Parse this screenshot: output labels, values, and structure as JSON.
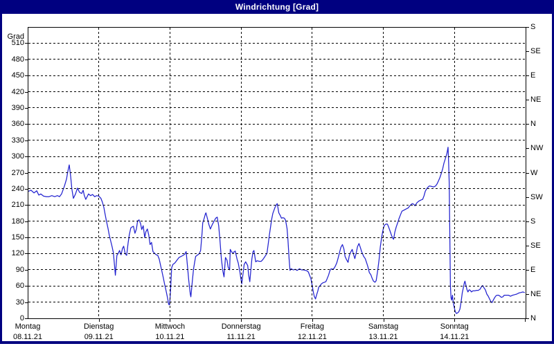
{
  "title_bar": {
    "title": "Windrichtung [Grad]",
    "bg": "#000080",
    "fg": "#ffffff"
  },
  "chart": {
    "y_axis_label": "Grad",
    "line_color": "#2121cf",
    "frame_color": "#000000",
    "background": "#ffffff",
    "left_ticks": [
      0,
      30,
      60,
      90,
      120,
      150,
      180,
      210,
      240,
      270,
      300,
      330,
      360,
      390,
      420,
      450,
      480,
      510
    ],
    "right_ticks": [
      {
        "value": 0,
        "label": "N"
      },
      {
        "value": 45,
        "label": "NE"
      },
      {
        "value": 90,
        "label": "E"
      },
      {
        "value": 135,
        "label": "SE"
      },
      {
        "value": 180,
        "label": "S"
      },
      {
        "value": 225,
        "label": "SW"
      },
      {
        "value": 270,
        "label": "W"
      },
      {
        "value": 315,
        "label": "NW"
      },
      {
        "value": 360,
        "label": "N"
      },
      {
        "value": 405,
        "label": "NE"
      },
      {
        "value": 450,
        "label": "E"
      },
      {
        "value": 495,
        "label": "SE"
      },
      {
        "value": 540,
        "label": "S"
      }
    ],
    "x_days": [
      {
        "name": "Montag",
        "date": "08.11.21"
      },
      {
        "name": "Dienstag",
        "date": "09.11.21"
      },
      {
        "name": "Mittwoch",
        "date": "10.11.21"
      },
      {
        "name": "Donnerstag",
        "date": "11.11.21"
      },
      {
        "name": "Freitag",
        "date": "12.11.21"
      },
      {
        "name": "Samstag",
        "date": "13.11.21"
      },
      {
        "name": "Sonntag",
        "date": "14.11.21"
      }
    ]
  },
  "chart_data": {
    "type": "line",
    "title": "Windrichtung [Grad]",
    "ylabel": "Grad",
    "ylim": [
      0,
      540
    ],
    "x_unit": "hours since Monday 08.11.21 00:00",
    "x_hours_max": 168,
    "grid": "dashed, 30-degree horizontal steps, vertical line per day",
    "right_axis": "compass directions every 45 degrees",
    "points": [
      [
        0,
        236
      ],
      [
        0.9,
        238
      ],
      [
        1.9,
        233
      ],
      [
        2.8,
        237
      ],
      [
        3.5,
        229
      ],
      [
        4.2,
        231
      ],
      [
        5.1,
        227
      ],
      [
        6.1,
        226
      ],
      [
        7,
        226
      ],
      [
        7.9,
        228
      ],
      [
        8.9,
        226
      ],
      [
        9.8,
        228
      ],
      [
        10.5,
        226
      ],
      [
        11.2,
        231
      ],
      [
        12.2,
        246
      ],
      [
        12.9,
        259
      ],
      [
        13.3,
        272
      ],
      [
        13.8,
        285
      ],
      [
        14.3,
        263
      ],
      [
        14.7,
        240
      ],
      [
        15.2,
        223
      ],
      [
        15.9,
        231
      ],
      [
        16.6,
        242
      ],
      [
        17.3,
        234
      ],
      [
        18,
        232
      ],
      [
        18.5,
        238
      ],
      [
        18.9,
        228
      ],
      [
        19.4,
        221
      ],
      [
        20.3,
        231
      ],
      [
        21,
        228
      ],
      [
        21.7,
        230
      ],
      [
        22.4,
        226
      ],
      [
        23.1,
        228
      ],
      [
        23.8,
        227
      ],
      [
        24.5,
        223
      ],
      [
        25,
        216
      ],
      [
        25.5,
        206
      ],
      [
        25.9,
        194
      ],
      [
        26.4,
        180
      ],
      [
        26.9,
        167
      ],
      [
        27.3,
        155
      ],
      [
        27.8,
        144
      ],
      [
        28.3,
        133
      ],
      [
        28.7,
        122
      ],
      [
        29,
        105
      ],
      [
        29.4,
        80
      ],
      [
        29.9,
        117
      ],
      [
        30.4,
        121
      ],
      [
        30.8,
        126
      ],
      [
        31.3,
        118
      ],
      [
        31.8,
        130
      ],
      [
        32.2,
        134
      ],
      [
        32.7,
        120
      ],
      [
        33.2,
        117
      ],
      [
        33.7,
        140
      ],
      [
        34.1,
        155
      ],
      [
        34.6,
        168
      ],
      [
        35.1,
        170
      ],
      [
        35.5,
        171
      ],
      [
        36,
        158
      ],
      [
        36.5,
        166
      ],
      [
        36.9,
        181
      ],
      [
        37.4,
        183
      ],
      [
        37.9,
        176
      ],
      [
        38.3,
        165
      ],
      [
        38.8,
        172
      ],
      [
        39.3,
        150
      ],
      [
        39.7,
        161
      ],
      [
        40.2,
        166
      ],
      [
        40.7,
        154
      ],
      [
        41.1,
        137
      ],
      [
        41.6,
        141
      ],
      [
        42.1,
        124
      ],
      [
        42.8,
        120
      ],
      [
        43.2,
        118
      ],
      [
        43.7,
        117
      ],
      [
        44.2,
        110
      ],
      [
        44.6,
        100
      ],
      [
        45.1,
        88
      ],
      [
        45.6,
        75
      ],
      [
        46,
        64
      ],
      [
        46.5,
        52
      ],
      [
        47,
        38
      ],
      [
        47.4,
        26
      ],
      [
        47.7,
        25
      ],
      [
        47.9,
        40
      ],
      [
        48.1,
        60
      ],
      [
        48.4,
        94
      ],
      [
        48.8,
        100
      ],
      [
        49.5,
        103
      ],
      [
        50.2,
        108
      ],
      [
        50.9,
        113
      ],
      [
        51.6,
        115
      ],
      [
        52.3,
        117
      ],
      [
        52.8,
        119
      ],
      [
        53.3,
        124
      ],
      [
        53.7,
        100
      ],
      [
        54.2,
        70
      ],
      [
        54.7,
        45
      ],
      [
        54.9,
        40
      ],
      [
        55.4,
        70
      ],
      [
        55.8,
        92
      ],
      [
        56.5,
        115
      ],
      [
        57,
        117
      ],
      [
        57.7,
        120
      ],
      [
        58.2,
        126
      ],
      [
        58.7,
        160
      ],
      [
        58.9,
        177
      ],
      [
        59.4,
        186
      ],
      [
        59.8,
        194
      ],
      [
        60,
        196
      ],
      [
        60.5,
        185
      ],
      [
        61,
        174
      ],
      [
        61.5,
        166
      ],
      [
        62.2,
        175
      ],
      [
        62.9,
        182
      ],
      [
        63.3,
        186
      ],
      [
        63.8,
        188
      ],
      [
        64.3,
        172
      ],
      [
        64.7,
        147
      ],
      [
        65.2,
        110
      ],
      [
        65.7,
        88
      ],
      [
        66.1,
        77
      ],
      [
        66.6,
        113
      ],
      [
        67.1,
        108
      ],
      [
        67.5,
        95
      ],
      [
        68,
        90
      ],
      [
        68.2,
        128
      ],
      [
        68.7,
        123
      ],
      [
        69.2,
        122
      ],
      [
        69.9,
        125
      ],
      [
        70.5,
        110
      ],
      [
        70.9,
        103
      ],
      [
        71.5,
        85
      ],
      [
        71.7,
        77
      ],
      [
        72.1,
        64
      ],
      [
        72.9,
        100
      ],
      [
        73.4,
        105
      ],
      [
        74.1,
        98
      ],
      [
        74.4,
        81
      ],
      [
        74.8,
        68
      ],
      [
        75.5,
        110
      ],
      [
        75.9,
        124
      ],
      [
        76.2,
        126
      ],
      [
        76.8,
        105
      ],
      [
        77.3,
        107
      ],
      [
        78,
        106
      ],
      [
        78.7,
        106
      ],
      [
        79.2,
        109
      ],
      [
        79.7,
        113
      ],
      [
        80.3,
        118
      ],
      [
        80.6,
        121
      ],
      [
        81,
        137
      ],
      [
        81.4,
        154
      ],
      [
        81.8,
        169
      ],
      [
        82.2,
        184
      ],
      [
        82.6,
        195
      ],
      [
        83,
        201
      ],
      [
        83.4,
        207
      ],
      [
        83.9,
        212
      ],
      [
        84.1,
        213
      ],
      [
        84.6,
        196
      ],
      [
        85.1,
        191
      ],
      [
        85.5,
        186
      ],
      [
        86,
        187
      ],
      [
        86.5,
        186
      ],
      [
        86.9,
        182
      ],
      [
        87.4,
        167
      ],
      [
        87.7,
        146
      ],
      [
        88.1,
        110
      ],
      [
        88.4,
        89
      ],
      [
        88.8,
        92
      ],
      [
        89.5,
        90
      ],
      [
        90.2,
        91
      ],
      [
        90.8,
        89
      ],
      [
        91.6,
        92
      ],
      [
        92.3,
        90
      ],
      [
        93,
        90
      ],
      [
        93.7,
        89
      ],
      [
        94.2,
        88
      ],
      [
        94.6,
        86
      ],
      [
        95.1,
        79
      ],
      [
        95.5,
        73
      ],
      [
        95.8,
        64
      ],
      [
        96.3,
        48
      ],
      [
        96.6,
        41
      ],
      [
        97,
        36
      ],
      [
        97.4,
        44
      ],
      [
        97.8,
        51
      ],
      [
        98.1,
        58
      ],
      [
        98.6,
        61
      ],
      [
        99,
        64
      ],
      [
        99.5,
        66
      ],
      [
        100,
        67
      ],
      [
        100.5,
        68
      ],
      [
        100.9,
        73
      ],
      [
        101.4,
        80
      ],
      [
        101.9,
        89
      ],
      [
        102.3,
        92
      ],
      [
        102.8,
        91
      ],
      [
        103.3,
        93
      ],
      [
        103.8,
        98
      ],
      [
        104.2,
        103
      ],
      [
        104.7,
        113
      ],
      [
        105.2,
        124
      ],
      [
        105.6,
        132
      ],
      [
        106.1,
        137
      ],
      [
        106.6,
        129
      ],
      [
        107,
        115
      ],
      [
        107.5,
        109
      ],
      [
        108,
        104
      ],
      [
        108.4,
        116
      ],
      [
        108.9,
        123
      ],
      [
        109.4,
        128
      ],
      [
        109.8,
        120
      ],
      [
        110.3,
        111
      ],
      [
        110.8,
        122
      ],
      [
        111.2,
        133
      ],
      [
        111.7,
        139
      ],
      [
        112.2,
        131
      ],
      [
        112.6,
        124
      ],
      [
        113.3,
        115
      ],
      [
        113.8,
        111
      ],
      [
        114.3,
        103
      ],
      [
        114.7,
        96
      ],
      [
        115.2,
        85
      ],
      [
        115.7,
        81
      ],
      [
        116.1,
        75
      ],
      [
        116.6,
        69
      ],
      [
        117.1,
        67
      ],
      [
        117.5,
        70
      ],
      [
        118,
        88
      ],
      [
        118.5,
        109
      ],
      [
        118.9,
        133
      ],
      [
        119.4,
        152
      ],
      [
        119.9,
        166
      ],
      [
        120.3,
        173
      ],
      [
        120.8,
        175
      ],
      [
        121.3,
        175
      ],
      [
        121.7,
        170
      ],
      [
        122.2,
        162
      ],
      [
        122.7,
        154
      ],
      [
        123.1,
        149
      ],
      [
        123.4,
        147
      ],
      [
        123.8,
        160
      ],
      [
        124.3,
        170
      ],
      [
        124.8,
        178
      ],
      [
        125.2,
        185
      ],
      [
        125.7,
        192
      ],
      [
        126.2,
        199
      ],
      [
        126.9,
        201
      ],
      [
        127.6,
        203
      ],
      [
        128.3,
        205
      ],
      [
        129,
        210
      ],
      [
        129.7,
        213
      ],
      [
        130.2,
        212
      ],
      [
        130.6,
        209
      ],
      [
        131.3,
        215
      ],
      [
        132,
        218
      ],
      [
        132.7,
        220
      ],
      [
        133.2,
        221
      ],
      [
        133.7,
        228
      ],
      [
        134.1,
        236
      ],
      [
        134.6,
        241
      ],
      [
        135.1,
        244
      ],
      [
        135.5,
        246
      ],
      [
        136.2,
        245
      ],
      [
        136.9,
        244
      ],
      [
        137.6,
        246
      ],
      [
        138.1,
        250
      ],
      [
        138.6,
        256
      ],
      [
        139,
        261
      ],
      [
        139.5,
        269
      ],
      [
        140,
        278
      ],
      [
        140.4,
        288
      ],
      [
        140.9,
        297
      ],
      [
        141.4,
        306
      ],
      [
        141.6,
        312
      ],
      [
        141.8,
        318
      ],
      [
        142,
        287
      ],
      [
        142.2,
        250
      ],
      [
        142.4,
        150
      ],
      [
        142.6,
        60
      ],
      [
        142.8,
        38
      ],
      [
        143,
        34
      ],
      [
        143.3,
        43
      ],
      [
        143.5,
        32
      ],
      [
        143.8,
        22
      ],
      [
        144.2,
        13
      ],
      [
        144.6,
        9
      ],
      [
        145,
        10
      ],
      [
        145.4,
        12
      ],
      [
        145.8,
        17
      ],
      [
        146.2,
        30
      ],
      [
        146.6,
        47
      ],
      [
        147,
        58
      ],
      [
        147.3,
        66
      ],
      [
        147.5,
        69
      ],
      [
        147.9,
        60
      ],
      [
        148.2,
        53
      ],
      [
        148.5,
        49
      ],
      [
        148.9,
        53
      ],
      [
        149.3,
        52
      ],
      [
        149.7,
        49
      ],
      [
        150.2,
        51
      ],
      [
        150.8,
        51
      ],
      [
        151.4,
        52
      ],
      [
        152,
        52
      ],
      [
        152.6,
        54
      ],
      [
        153,
        58
      ],
      [
        153.5,
        61
      ],
      [
        154,
        56
      ],
      [
        154.4,
        53
      ],
      [
        154.9,
        45
      ],
      [
        155.4,
        41
      ],
      [
        155.8,
        36
      ],
      [
        156.3,
        31
      ],
      [
        156.6,
        29
      ],
      [
        157,
        33
      ],
      [
        157.5,
        38
      ],
      [
        158,
        42
      ],
      [
        158.4,
        43
      ],
      [
        158.9,
        43
      ],
      [
        159.4,
        41
      ],
      [
        159.8,
        39
      ],
      [
        160.3,
        40
      ],
      [
        160.8,
        43
      ],
      [
        161.5,
        43
      ],
      [
        162.2,
        43
      ],
      [
        162.9,
        41
      ],
      [
        163.6,
        43
      ],
      [
        164.3,
        44
      ],
      [
        165,
        45
      ],
      [
        165.7,
        47
      ],
      [
        166.4,
        48
      ],
      [
        167.1,
        49
      ],
      [
        167.6,
        48
      ]
    ]
  }
}
